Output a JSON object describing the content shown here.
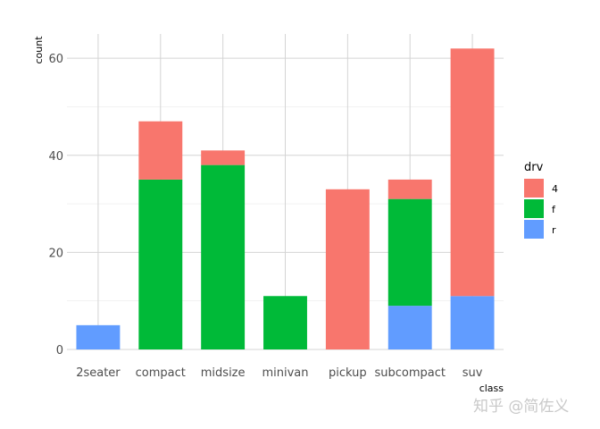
{
  "chart_data": {
    "type": "bar",
    "stacked": true,
    "categories": [
      "2seater",
      "compact",
      "midsize",
      "minivan",
      "pickup",
      "subcompact",
      "suv"
    ],
    "series": [
      {
        "name": "4",
        "color": "#F8766D",
        "values": [
          0,
          12,
          3,
          0,
          33,
          4,
          51
        ]
      },
      {
        "name": "f",
        "color": "#00BA38",
        "values": [
          0,
          35,
          38,
          11,
          0,
          22,
          0
        ]
      },
      {
        "name": "r",
        "color": "#619CFF",
        "values": [
          5,
          0,
          0,
          0,
          0,
          9,
          11
        ]
      }
    ],
    "stack_order_bottom_to_top": [
      "r",
      "f",
      "4"
    ],
    "xlabel": "class",
    "ylabel": "count",
    "ylim": [
      0,
      65
    ],
    "yticks": [
      0,
      20,
      40,
      60
    ],
    "grid": true,
    "legend": {
      "title": "drv",
      "position": "right",
      "entries": [
        "4",
        "f",
        "r"
      ]
    }
  },
  "watermark": "知乎 @简佐义"
}
